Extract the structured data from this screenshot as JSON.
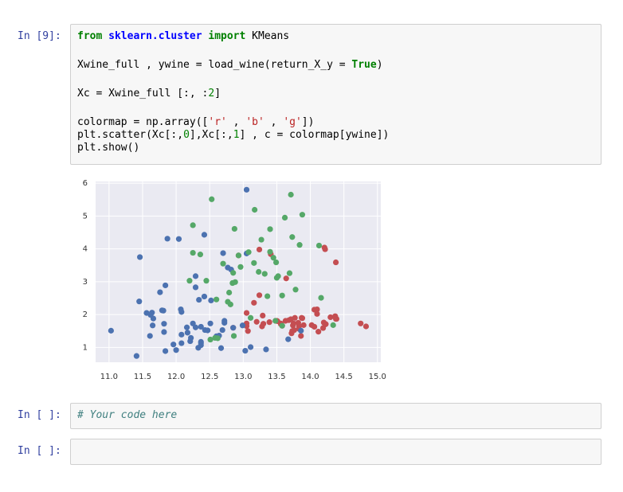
{
  "cells": [
    {
      "prompt": "In [9]:",
      "blocks": [
        [
          [
            {
              "text": "from",
              "kind": "kw"
            },
            " ",
            {
              "text": "sklearn.cluster",
              "kind": "ns"
            },
            " ",
            {
              "text": "import",
              "kind": "kw"
            },
            " KMeans"
          ]
        ],
        [
          [
            "Xwine_full , ywine = load_wine(return_X_y = ",
            {
              "text": "True",
              "kind": "kw"
            },
            ")"
          ]
        ],
        [
          [
            "Xc = Xwine_full [:, :",
            {
              "text": "2",
              "kind": "num"
            },
            "]"
          ]
        ],
        [
          [
            "colormap = np.array([",
            {
              "text": "'r'",
              "kind": "str"
            },
            " , ",
            {
              "text": "'b'",
              "kind": "str"
            },
            " , ",
            {
              "text": "'g'",
              "kind": "str"
            },
            "])"
          ],
          [
            "plt.scatter(Xc[:,",
            {
              "text": "0",
              "kind": "num"
            },
            "],Xc[:,",
            {
              "text": "1",
              "kind": "num"
            },
            "] , c = colormap[ywine])"
          ],
          [
            "plt.show()"
          ]
        ]
      ]
    },
    {
      "prompt": "In [ ]:",
      "blocks": [
        [
          [
            {
              "text": "# Your code here",
              "kind": "cm"
            }
          ]
        ]
      ]
    },
    {
      "prompt": "In [ ]:"
    }
  ],
  "chart_data": {
    "type": "scatter",
    "grid": true,
    "xlim": [
      10.8,
      15.05
    ],
    "ylim": [
      0.55,
      6.05
    ],
    "xticks": [
      {
        "value": 11,
        "label": "11.0"
      },
      {
        "value": 11.5,
        "label": "11.5"
      },
      {
        "value": 12,
        "label": "12.0"
      },
      {
        "value": 12.5,
        "label": "12.5"
      },
      {
        "value": 13,
        "label": "13.0"
      },
      {
        "value": 13.5,
        "label": "13.5"
      },
      {
        "value": 14,
        "label": "14.0"
      },
      {
        "value": 14.5,
        "label": "14.5"
      },
      {
        "value": 15,
        "label": "15.0"
      }
    ],
    "yticks": [
      1,
      2,
      3,
      4,
      5,
      6
    ],
    "series": [
      {
        "color": "#c44e52",
        "x": [
          12.85,
          12.93,
          13.05,
          13.05,
          13.05,
          13.07,
          13.16,
          13.2,
          13.24,
          13.24,
          13.28,
          13.29,
          13.3,
          13.39,
          13.41,
          13.48,
          13.5,
          13.51,
          13.56,
          13.56,
          13.58,
          13.63,
          13.64,
          13.68,
          13.71,
          13.72,
          13.73,
          13.74,
          13.75,
          13.76,
          13.77,
          13.82,
          13.83,
          13.83,
          13.86,
          13.87,
          13.88,
          13.9,
          14.02,
          14.06,
          14.06,
          14.1,
          14.1,
          14.12,
          14.19,
          14.2,
          14.21,
          14.22,
          14.22,
          14.23,
          14.3,
          14.37,
          14.38,
          14.38,
          14.39,
          14.75,
          14.83
        ],
        "values": [
          1.6,
          3.8,
          1.65,
          1.73,
          2.05,
          1.5,
          2.36,
          1.78,
          2.59,
          3.98,
          1.64,
          1.97,
          1.72,
          1.77,
          3.84,
          1.81,
          1.81,
          1.8,
          1.71,
          1.73,
          1.66,
          1.81,
          3.1,
          1.83,
          1.86,
          1.43,
          1.5,
          1.67,
          1.73,
          1.53,
          1.9,
          1.75,
          1.57,
          1.65,
          1.35,
          1.9,
          1.89,
          1.68,
          1.68,
          1.63,
          2.15,
          2.02,
          2.16,
          1.48,
          1.59,
          1.76,
          4.04,
          1.7,
          3.99,
          1.71,
          1.92,
          1.95,
          1.87,
          3.59,
          1.87,
          1.73,
          1.64
        ]
      },
      {
        "color": "#4c72b0",
        "x": [
          11.03,
          11.41,
          11.45,
          11.46,
          11.56,
          11.61,
          11.62,
          11.64,
          11.65,
          11.66,
          11.76,
          11.79,
          11.81,
          11.82,
          11.82,
          11.84,
          11.84,
          11.87,
          11.96,
          12.0,
          12.04,
          12.07,
          12.08,
          12.08,
          12.08,
          12.16,
          12.17,
          12.21,
          12.22,
          12.25,
          12.29,
          12.29,
          12.29,
          12.33,
          12.34,
          12.37,
          12.37,
          12.37,
          12.37,
          12.42,
          12.42,
          12.43,
          12.47,
          12.51,
          12.52,
          12.6,
          12.64,
          12.67,
          12.69,
          12.7,
          12.72,
          12.72,
          12.77,
          12.82,
          12.85,
          12.99,
          13.03,
          13.05,
          13.05,
          13.11,
          13.34,
          13.67,
          13.86
        ],
        "values": [
          1.51,
          0.74,
          2.4,
          3.75,
          2.05,
          1.35,
          1.99,
          2.06,
          1.67,
          1.88,
          2.68,
          2.13,
          2.12,
          1.72,
          1.47,
          2.89,
          0.89,
          4.31,
          1.09,
          0.92,
          4.3,
          2.16,
          1.13,
          2.08,
          1.39,
          1.61,
          1.45,
          1.19,
          1.29,
          1.73,
          1.61,
          2.83,
          3.17,
          0.99,
          2.45,
          1.13,
          1.63,
          1.17,
          1.07,
          4.43,
          2.55,
          1.53,
          1.52,
          1.73,
          2.43,
          1.34,
          1.36,
          0.98,
          1.53,
          3.87,
          1.75,
          1.81,
          3.43,
          3.37,
          1.6,
          1.67,
          0.9,
          3.86,
          5.8,
          1.01,
          0.94,
          1.25,
          1.51
        ]
      },
      {
        "color": "#55a868",
        "x": [
          12.2,
          12.25,
          12.25,
          12.36,
          12.45,
          12.51,
          12.53,
          12.58,
          12.6,
          12.62,
          12.7,
          12.77,
          12.79,
          12.81,
          12.84,
          12.85,
          12.86,
          12.87,
          12.88,
          12.93,
          12.96,
          13.08,
          13.11,
          13.16,
          13.17,
          13.23,
          13.27,
          13.32,
          13.36,
          13.4,
          13.4,
          13.45,
          13.48,
          13.49,
          13.5,
          13.52,
          13.58,
          13.58,
          13.62,
          13.69,
          13.71,
          13.73,
          13.78,
          13.84,
          13.88,
          14.13,
          14.16,
          14.34
        ],
        "values": [
          3.03,
          4.72,
          3.88,
          3.83,
          3.03,
          1.24,
          5.51,
          1.29,
          2.46,
          1.28,
          3.55,
          2.39,
          2.67,
          2.31,
          2.96,
          3.27,
          1.35,
          4.61,
          2.99,
          3.8,
          3.45,
          3.9,
          1.9,
          3.57,
          5.19,
          3.3,
          4.28,
          3.24,
          2.56,
          3.91,
          4.6,
          3.73,
          1.81,
          3.59,
          3.12,
          3.17,
          1.66,
          2.58,
          4.95,
          3.26,
          5.65,
          4.36,
          2.76,
          4.12,
          5.04,
          4.1,
          2.51,
          1.68
        ]
      }
    ]
  }
}
